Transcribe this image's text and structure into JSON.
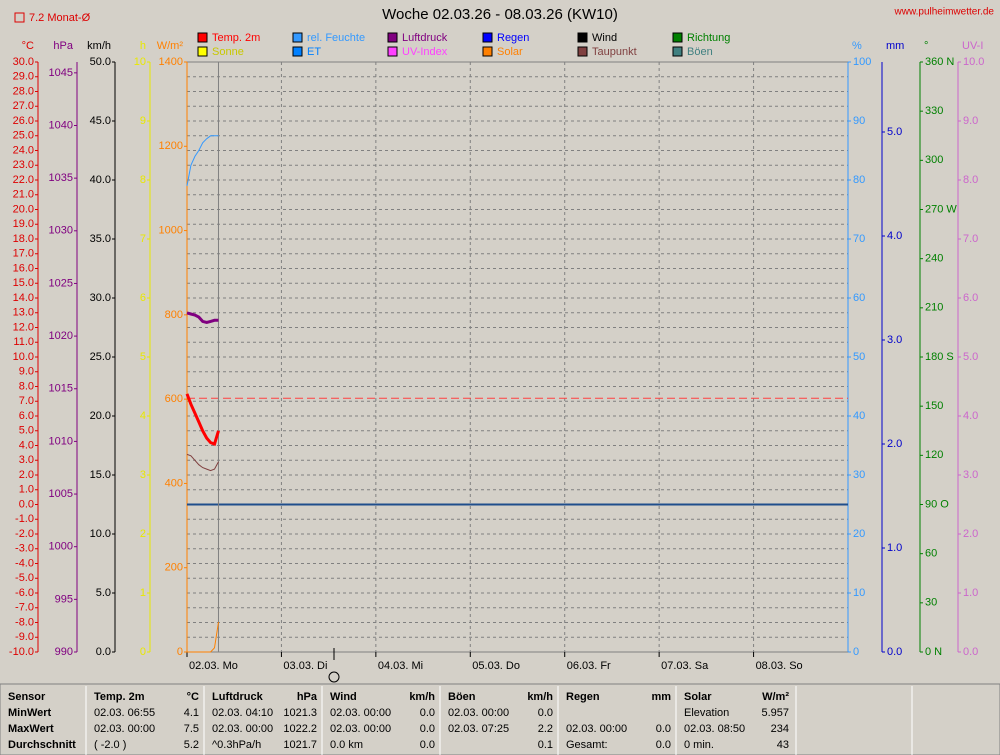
{
  "header": {
    "title": "Woche 02.03.26 - 08.03.26 (KW10)",
    "site": "www.pulheimwetter.de",
    "option": "7.2 Monat-Ø"
  },
  "legend": [
    {
      "name": "Temp. 2m",
      "color": "#ff0000"
    },
    {
      "name": "rel. Feuchte",
      "color": "#3399ff"
    },
    {
      "name": "Luftdruck",
      "color": "#800080"
    },
    {
      "name": "Regen",
      "color": "#0000ff"
    },
    {
      "name": "Wind",
      "color": "#000000"
    },
    {
      "name": "Richtung",
      "color": "#008000"
    },
    {
      "name": "Sonne",
      "color": "#ffff00"
    },
    {
      "name": "ET",
      "color": "#0080ff"
    },
    {
      "name": "UV-Index",
      "color": "#ff40ff"
    },
    {
      "name": "Solar",
      "color": "#ff8000"
    },
    {
      "name": "Taupunkt",
      "color": "#804040"
    },
    {
      "name": "Böen",
      "color": "#408080"
    }
  ],
  "axes": [
    {
      "unit": "°C",
      "color": "#dd0000",
      "side": "left",
      "lim": [
        -10,
        30
      ],
      "ticks": [
        {
          "value": 30,
          "label": "30.0"
        },
        {
          "value": 29,
          "label": "29.0"
        },
        {
          "value": 28,
          "label": "28.0"
        },
        {
          "value": 27,
          "label": "27.0"
        },
        {
          "value": 26,
          "label": "26.0"
        },
        {
          "value": 25,
          "label": "25.0"
        },
        {
          "value": 24,
          "label": "24.0"
        },
        {
          "value": 23,
          "label": "23.0"
        },
        {
          "value": 22,
          "label": "22.0"
        },
        {
          "value": 21,
          "label": "21.0"
        },
        {
          "value": 20,
          "label": "20.0"
        },
        {
          "value": 19,
          "label": "19.0"
        },
        {
          "value": 18,
          "label": "18.0"
        },
        {
          "value": 17,
          "label": "17.0"
        },
        {
          "value": 16,
          "label": "16.0"
        },
        {
          "value": 15,
          "label": "15.0"
        },
        {
          "value": 14,
          "label": "14.0"
        },
        {
          "value": 13,
          "label": "13.0"
        },
        {
          "value": 12,
          "label": "12.0"
        },
        {
          "value": 11,
          "label": "11.0"
        },
        {
          "value": 10,
          "label": "10.0"
        },
        {
          "value": 9,
          "label": "9.0"
        },
        {
          "value": 8,
          "label": "8.0"
        },
        {
          "value": 7,
          "label": "7.0"
        },
        {
          "value": 6,
          "label": "6.0"
        },
        {
          "value": 5,
          "label": "5.0"
        },
        {
          "value": 4,
          "label": "4.0"
        },
        {
          "value": 3,
          "label": "3.0"
        },
        {
          "value": 2,
          "label": "2.0"
        },
        {
          "value": 1,
          "label": "1.0"
        },
        {
          "value": 0,
          "label": "0.0"
        },
        {
          "value": -1,
          "label": "-1.0"
        },
        {
          "value": -2,
          "label": "-2.0"
        },
        {
          "value": -3,
          "label": "-3.0"
        },
        {
          "value": -4,
          "label": "-4.0"
        },
        {
          "value": -5,
          "label": "-5.0"
        },
        {
          "value": -6,
          "label": "-6.0"
        },
        {
          "value": -7,
          "label": "-7.0"
        },
        {
          "value": -8,
          "label": "-8.0"
        },
        {
          "value": -9,
          "label": "-9.0"
        },
        {
          "value": -10,
          "label": "-10.0"
        }
      ]
    },
    {
      "unit": "hPa",
      "color": "#800080",
      "side": "left",
      "lim": [
        990,
        1046.03
      ],
      "ticks": [
        1045,
        1040,
        1035,
        1030,
        1025,
        1020,
        1015,
        1010,
        1005,
        1000,
        995,
        990
      ]
    },
    {
      "unit": "km/h",
      "color": "#000000",
      "side": "left",
      "lim": [
        0,
        50
      ],
      "ticks": [
        {
          "value": 50,
          "label": "50.0"
        },
        {
          "value": 45,
          "label": "45.0"
        },
        {
          "value": 40,
          "label": "40.0"
        },
        {
          "value": 35,
          "label": "35.0"
        },
        {
          "value": 30,
          "label": "30.0"
        },
        {
          "value": 25,
          "label": "25.0"
        },
        {
          "value": 20,
          "label": "20.0"
        },
        {
          "value": 15,
          "label": "15.0"
        },
        {
          "value": 10,
          "label": "10.0"
        },
        {
          "value": 5,
          "label": "5.0"
        },
        {
          "value": 0,
          "label": "0.0"
        }
      ]
    },
    {
      "unit": "h",
      "color": "#e8e800",
      "side": "left",
      "lim": [
        0,
        10
      ],
      "ticks": [
        10,
        9,
        8,
        7,
        6,
        5,
        4,
        3,
        2,
        1,
        0
      ]
    },
    {
      "unit": "W/m²",
      "color": "#ff8000",
      "side": "left",
      "lim": [
        0,
        1400
      ],
      "ticks": [
        1400,
        1200,
        1000,
        800,
        600,
        400,
        200,
        0
      ]
    },
    {
      "unit": "%",
      "color": "#3399ff",
      "side": "right",
      "lim": [
        0,
        100
      ],
      "ticks": [
        100,
        90,
        80,
        70,
        60,
        50,
        40,
        30,
        20,
        10,
        0
      ]
    },
    {
      "unit": "mm",
      "color": "#0000cc",
      "side": "right",
      "lim": [
        0,
        5.673
      ],
      "ticks": [
        {
          "value": 5,
          "label": "5.0"
        },
        {
          "value": 4,
          "label": "4.0"
        },
        {
          "value": 3,
          "label": "3.0"
        },
        {
          "value": 2,
          "label": "2.0"
        },
        {
          "value": 1,
          "label": "1.0"
        },
        {
          "value": 0,
          "label": "0.0"
        }
      ]
    },
    {
      "unit": "°",
      "color": "#008000",
      "side": "right",
      "lim": [
        0,
        360
      ],
      "ticks": [
        {
          "value": 360,
          "label": "360 N"
        },
        330,
        300,
        {
          "value": 270,
          "label": "270 W"
        },
        240,
        210,
        {
          "value": 180,
          "label": "180 S"
        },
        150,
        120,
        {
          "value": 90,
          "label": "90  O"
        },
        60,
        30,
        {
          "value": 0,
          "label": "0   N"
        }
      ]
    },
    {
      "unit": "UV-I",
      "color": "#cc66cc",
      "side": "right",
      "lim": [
        0,
        10
      ],
      "ticks": [
        {
          "value": 10,
          "label": "10.0"
        },
        {
          "value": 9,
          "label": "9.0"
        },
        {
          "value": 8,
          "label": "8.0"
        },
        {
          "value": 7,
          "label": "7.0"
        },
        {
          "value": 6,
          "label": "6.0"
        },
        {
          "value": 5,
          "label": "5.0"
        },
        {
          "value": 4,
          "label": "4.0"
        },
        {
          "value": 3,
          "label": "3.0"
        },
        {
          "value": 2,
          "label": "2.0"
        },
        {
          "value": 1,
          "label": "1.0"
        },
        {
          "value": 0,
          "label": "0.0"
        }
      ]
    }
  ],
  "xlim": [
    0,
    168
  ],
  "day_ticks": [
    0,
    24,
    48,
    72,
    96,
    120,
    144
  ],
  "x_labels": [
    "02.03.  Mo",
    "03.03.  Di",
    "04.03.  Mi",
    "05.03.  Do",
    "06.03.  Fr",
    "07.03.  Sa",
    "08.03.  So"
  ],
  "now_hour": 8,
  "monthly_avg": 7.2,
  "zero_line": 0,
  "hours": [
    0,
    1,
    2,
    3,
    4,
    5,
    6,
    7,
    8
  ],
  "series": [
    {
      "axis": 0,
      "color": "#ff0000",
      "width": 3,
      "values": [
        7.5,
        6.8,
        6.2,
        5.6,
        5.0,
        4.5,
        4.2,
        4.1,
        5.0
      ]
    },
    {
      "axis": 5,
      "color": "#3399ff",
      "width": 1,
      "values": [
        79,
        82.5,
        84,
        85,
        86.3,
        87,
        87.5,
        87.5,
        87.5
      ]
    },
    {
      "axis": 1,
      "color": "#800080",
      "width": 3,
      "values": [
        1022.2,
        1022.1,
        1022.0,
        1021.8,
        1021.4,
        1021.3,
        1021.4,
        1021.5,
        1021.5
      ]
    },
    {
      "axis": 0,
      "color": "#804040",
      "width": 1,
      "values": [
        3.4,
        3.3,
        3.0,
        2.7,
        2.5,
        2.4,
        2.3,
        2.4,
        2.9
      ]
    },
    {
      "axis": 4,
      "color": "#ff8000",
      "width": 1,
      "values": [
        0,
        0,
        0,
        0,
        0,
        0,
        0,
        10,
        71
      ]
    }
  ],
  "table": {
    "row_labels": [
      "Sensor",
      "MinWert",
      "MaxWert",
      "Durchschnitt"
    ],
    "groups": [
      {
        "header": [
          "Temp. 2m",
          "°C"
        ],
        "cells": [
          {
            "l": "02.03.  06:55",
            "r": "4.1"
          },
          {
            "l": "02.03.  00:00",
            "r": "7.5"
          },
          {
            "l": "( -2.0 )",
            "r": "5.2"
          }
        ]
      },
      {
        "header": [
          "Luftdruck",
          "hPa"
        ],
        "cells": [
          {
            "l": "02.03.  04:10",
            "r": "1021.3"
          },
          {
            "l": "02.03.  00:00",
            "r": "1022.2"
          },
          {
            "l": "^0.3hPa/h",
            "r": "1021.7"
          }
        ]
      },
      {
        "header": [
          "Wind",
          "km/h"
        ],
        "cells": [
          {
            "l": "02.03.  00:00",
            "r": "0.0"
          },
          {
            "l": "02.03.  00:00",
            "r": "0.0"
          },
          {
            "l": "0.0 km",
            "r": "0.0"
          }
        ]
      },
      {
        "header": [
          "Böen",
          "km/h"
        ],
        "cells": [
          {
            "l": "02.03.  00:00",
            "r": "0.0"
          },
          {
            "l": "02.03.  07:25",
            "r": "2.2"
          },
          {
            "r": "0.1"
          }
        ]
      },
      {
        "header": [
          "Regen",
          "mm"
        ],
        "cells": [
          {},
          {
            "l": "02.03.  00:00",
            "r": "0.0"
          },
          {
            "l": "Gesamt:",
            "r": "0.0"
          }
        ]
      },
      {
        "header": [
          "Solar",
          "W/m²"
        ],
        "cells": [
          {
            "l": "Elevation",
            "r": "5.957"
          },
          {
            "l": "02.03.  08:50",
            "r": "234"
          },
          {
            "l": "0 min.",
            "r": "43"
          }
        ]
      }
    ]
  }
}
